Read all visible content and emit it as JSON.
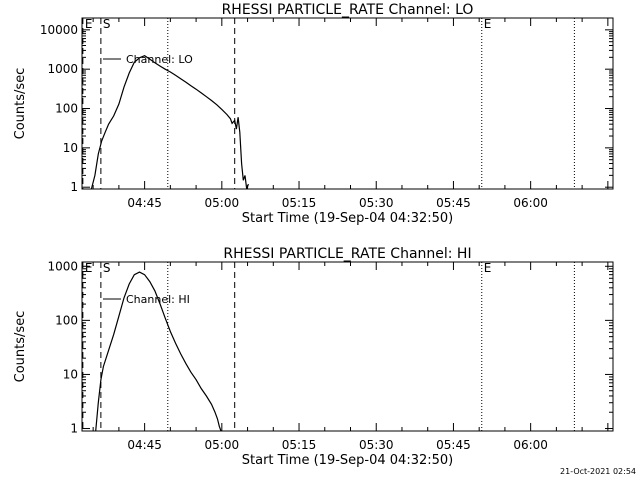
{
  "footer": {
    "timestamp": "21-Oct-2021 02:54"
  },
  "chart_data": [
    {
      "type": "line",
      "title": "RHESSI PARTICLE_RATE Channel: LO",
      "xlabel": "Start Time (19-Sep-04 04:32:50)",
      "ylabel": "Counts/sec",
      "legend": "Channel: LO",
      "y_scale": "log",
      "xlim": [
        "04:32:50",
        "06:16:00"
      ],
      "ylim": [
        0.9,
        20000
      ],
      "x_ticks": [
        "04:45",
        "05:00",
        "05:15",
        "05:30",
        "05:45",
        "06:00"
      ],
      "y_ticks": [
        "1",
        "10",
        "100",
        "1000",
        "10000"
      ],
      "markers": [
        {
          "label": "E",
          "time": "04:33:00",
          "style": "dashed"
        },
        {
          "label": "S",
          "time": "04:36:30",
          "style": "dashed"
        },
        {
          "label": "",
          "time": "04:49:30",
          "style": "dotted"
        },
        {
          "label": "",
          "time": "05:02:30",
          "style": "dashed"
        },
        {
          "label": "E",
          "time": "05:50:30",
          "style": "dotted"
        },
        {
          "label": "",
          "time": "06:08:30",
          "style": "dotted"
        }
      ],
      "series": [
        {
          "name": "Channel: LO",
          "x": [
            "04:34:40",
            "04:35:20",
            "04:36:00",
            "04:36:40",
            "04:37:20",
            "04:38:00",
            "04:39:00",
            "04:40:00",
            "04:41:00",
            "04:42:00",
            "04:43:00",
            "04:44:00",
            "04:45:00",
            "04:46:00",
            "04:47:00",
            "04:48:00",
            "04:49:00",
            "04:50:00",
            "04:51:00",
            "04:52:00",
            "04:53:00",
            "04:54:00",
            "04:55:00",
            "04:56:00",
            "04:57:00",
            "04:58:00",
            "04:59:00",
            "05:00:00",
            "05:01:00",
            "05:01:40",
            "05:02:00",
            "05:02:30",
            "05:02:50",
            "05:03:10",
            "05:03:30",
            "05:03:50",
            "05:04:10",
            "05:04:30",
            "05:04:50",
            "05:05:10"
          ],
          "y": [
            0.9,
            2,
            7,
            15,
            25,
            40,
            65,
            130,
            350,
            800,
            1500,
            1950,
            2200,
            1800,
            1450,
            1200,
            1000,
            850,
            700,
            570,
            470,
            380,
            310,
            250,
            200,
            160,
            125,
            95,
            70,
            55,
            42,
            50,
            30,
            60,
            25,
            4,
            1.5,
            2,
            0.9,
            1.2
          ]
        }
      ]
    },
    {
      "type": "line",
      "title": "RHESSI PARTICLE_RATE Channel: HI",
      "xlabel": "Start Time (19-Sep-04 04:32:50)",
      "ylabel": "Counts/sec",
      "legend": "Channel: HI",
      "y_scale": "log",
      "xlim": [
        "04:32:50",
        "06:16:00"
      ],
      "ylim": [
        0.9,
        1200
      ],
      "x_ticks": [
        "04:45",
        "05:00",
        "05:15",
        "05:30",
        "05:45",
        "06:00"
      ],
      "y_ticks": [
        "1",
        "10",
        "100",
        "1000"
      ],
      "markers": [
        {
          "label": "E",
          "time": "04:33:00",
          "style": "dashed"
        },
        {
          "label": "S",
          "time": "04:36:30",
          "style": "dashed"
        },
        {
          "label": "",
          "time": "04:49:30",
          "style": "dotted"
        },
        {
          "label": "",
          "time": "05:02:30",
          "style": "dashed"
        },
        {
          "label": "E",
          "time": "05:50:30",
          "style": "dotted"
        },
        {
          "label": "",
          "time": "06:08:30",
          "style": "dotted"
        }
      ],
      "series": [
        {
          "name": "Channel: HI",
          "x": [
            "04:35:30",
            "04:36:00",
            "04:36:30",
            "04:37:00",
            "04:38:00",
            "04:39:00",
            "04:40:00",
            "04:41:00",
            "04:42:00",
            "04:43:00",
            "04:44:00",
            "04:45:00",
            "04:46:00",
            "04:47:00",
            "04:48:00",
            "04:49:00",
            "04:50:00",
            "04:51:00",
            "04:52:00",
            "04:53:00",
            "04:54:00",
            "04:55:00",
            "04:56:00",
            "04:57:00",
            "04:58:00",
            "04:58:40",
            "04:59:10",
            "04:59:30",
            "04:59:50"
          ],
          "y": [
            0.9,
            3,
            8,
            14,
            28,
            55,
            120,
            260,
            470,
            700,
            780,
            700,
            520,
            350,
            200,
            110,
            62,
            38,
            24,
            16,
            11,
            8,
            5.5,
            4,
            2.8,
            2,
            1.5,
            1.1,
            0.9
          ]
        }
      ]
    }
  ]
}
